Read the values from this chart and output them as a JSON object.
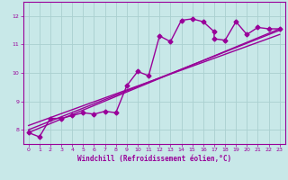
{
  "title": "",
  "xlabel": "Windchill (Refroidissement éolien,°C)",
  "ylabel": "",
  "xlim": [
    -0.5,
    23.5
  ],
  "ylim": [
    7.5,
    12.5
  ],
  "yticks": [
    8,
    9,
    10,
    11,
    12
  ],
  "xticks": [
    0,
    1,
    2,
    3,
    4,
    5,
    6,
    7,
    8,
    9,
    10,
    11,
    12,
    13,
    14,
    15,
    16,
    17,
    18,
    19,
    20,
    21,
    22,
    23
  ],
  "background_color": "#c8e8e8",
  "grid_color": "#aad0d0",
  "line_color": "#990099",
  "marker": "D",
  "markersize": 2.5,
  "linewidth": 1.0,
  "series": [
    [
      0,
      7.9
    ],
    [
      1,
      7.75
    ],
    [
      2,
      8.4
    ],
    [
      3,
      8.4
    ],
    [
      4,
      8.5
    ],
    [
      5,
      8.6
    ],
    [
      6,
      8.55
    ],
    [
      7,
      8.65
    ],
    [
      8,
      8.6
    ],
    [
      9,
      9.55
    ],
    [
      10,
      10.05
    ],
    [
      11,
      9.9
    ],
    [
      12,
      11.3
    ],
    [
      13,
      11.1
    ],
    [
      14,
      11.85
    ],
    [
      15,
      11.9
    ],
    [
      16,
      11.8
    ],
    [
      17,
      11.45
    ],
    [
      17,
      11.2
    ],
    [
      18,
      11.15
    ],
    [
      19,
      11.8
    ],
    [
      20,
      11.35
    ],
    [
      21,
      11.6
    ],
    [
      22,
      11.55
    ],
    [
      23,
      11.55
    ]
  ],
  "line1": [
    [
      0,
      8.0
    ],
    [
      23,
      11.5
    ]
  ],
  "line2": [
    [
      0,
      8.15
    ],
    [
      23,
      11.35
    ]
  ],
  "line3": [
    [
      0,
      7.9
    ],
    [
      23,
      11.55
    ]
  ]
}
